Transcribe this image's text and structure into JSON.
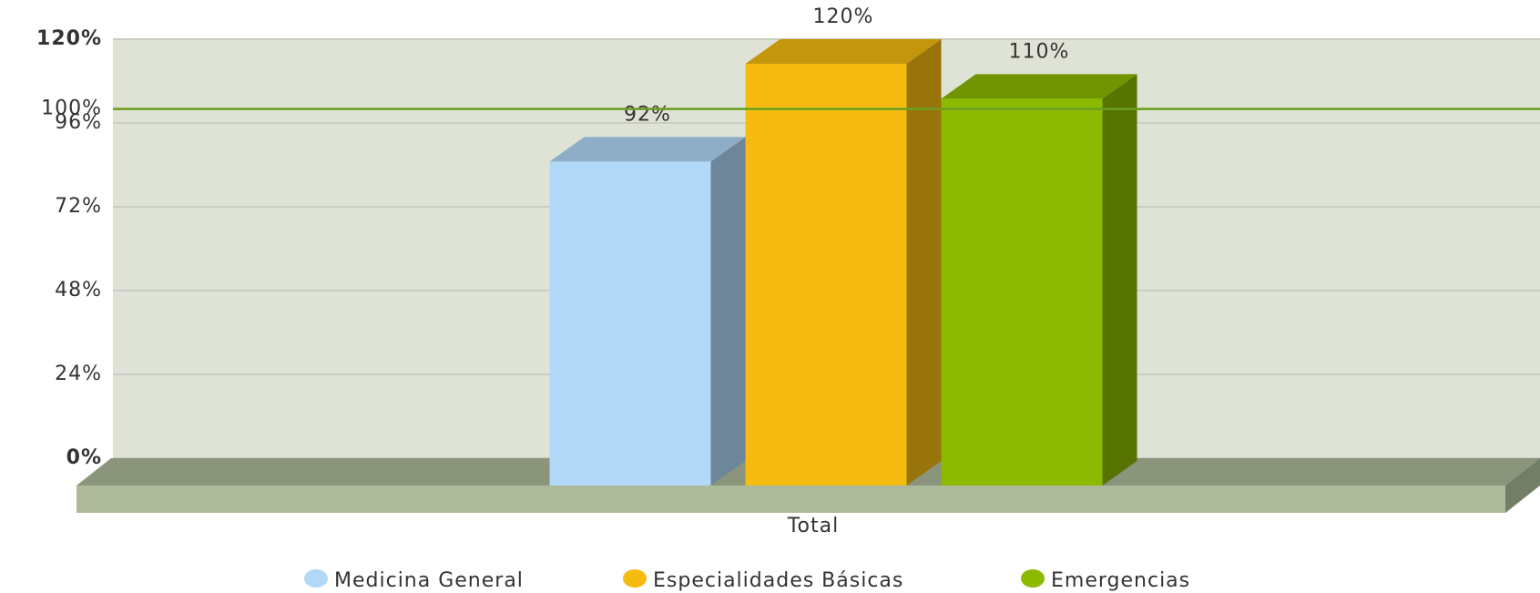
{
  "chart_data": {
    "type": "bar3d",
    "categories": [
      "Total"
    ],
    "series": [
      {
        "name": "Medicina General",
        "color": "#b2d8f7",
        "values": [
          92
        ],
        "value_labels": [
          "92%"
        ]
      },
      {
        "name": "Especialidades Básicas",
        "color": "#f5bb10",
        "values": [
          120
        ],
        "value_labels": [
          "120%"
        ]
      },
      {
        "name": "Emergencias",
        "color": "#8cba00",
        "values": [
          110
        ],
        "value_labels": [
          "110%"
        ]
      }
    ],
    "ylim": [
      0,
      120
    ],
    "yticks": [
      {
        "value": 0,
        "label": "0%"
      },
      {
        "value": 24,
        "label": "24%"
      },
      {
        "value": 48,
        "label": "48%"
      },
      {
        "value": 72,
        "label": "72%"
      },
      {
        "value": 96,
        "label": "96%"
      },
      {
        "value": 120,
        "label": "120%"
      }
    ],
    "grid": true,
    "trendline": {
      "value": 100,
      "label": "100%",
      "color": "#6a9e1f"
    },
    "legend": "bottom"
  }
}
